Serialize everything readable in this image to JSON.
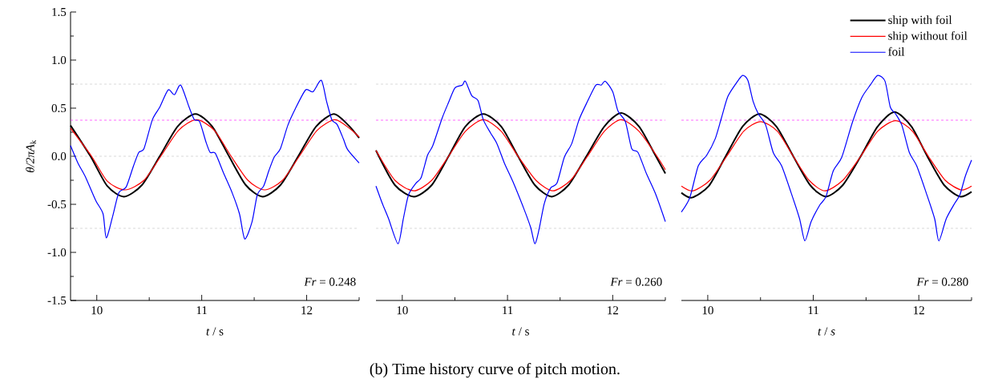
{
  "chart_data": [
    {
      "type": "line",
      "xlabel": "*t* / s",
      "ylabel": "*θ/2πA*$_{k}$",
      "xlim": [
        9.75,
        12.5
      ],
      "ylim": [
        -1.5,
        1.5
      ],
      "xticks": [
        10,
        {
          "value": 10.5,
          "label": null
        },
        11,
        {
          "value": 11.5,
          "label": null
        },
        12,
        {
          "value": 12.5,
          "label": null
        }
      ],
      "yticks": [
        -1.5,
        {
          "value": -1.25,
          "label": null
        },
        {
          "value": -1,
          "label": "-1.0"
        },
        {
          "value": -0.75,
          "label": null
        },
        -0.5,
        {
          "value": -0.25,
          "label": null
        },
        {
          "value": 0,
          "label": "0.0"
        },
        {
          "value": 0.25,
          "label": null
        },
        0.5,
        {
          "value": 0.75,
          "label": null
        },
        {
          "value": 1,
          "label": "1.0"
        },
        {
          "value": 1.25,
          "label": null
        },
        1.5
      ],
      "ref_lines": [
        {
          "axis": "y",
          "value": 0.75,
          "color": "#c0c0c0",
          "line_style": "dashed"
        },
        {
          "axis": "y",
          "value": 0,
          "color": "#c0c0c0",
          "line_style": "dashed"
        },
        {
          "axis": "y",
          "value": -0.75,
          "color": "#c0c0c0",
          "line_style": "dashed"
        },
        {
          "axis": "y",
          "value": 0.375,
          "color": "#ff00ff",
          "line_style": "dashed"
        }
      ],
      "marker": "none",
      "line_style": "solid",
      "annotations": [
        "*Fr* = 0.248"
      ],
      "series": [
        {
          "color": "#000000",
          "x": [
            9.75,
            9.94,
            10.1,
            10.26,
            10.43,
            10.6,
            10.77,
            10.94,
            11.1,
            11.26,
            11.42,
            11.58,
            11.75,
            11.92,
            12.09,
            12.26,
            12.4,
            12.5
          ],
          "values": [
            0.32,
            0.0,
            -0.31,
            -0.42,
            -0.3,
            0.0,
            0.31,
            0.44,
            0.31,
            0.0,
            -0.3,
            -0.42,
            -0.3,
            0.0,
            0.31,
            0.44,
            0.32,
            0.19
          ]
        },
        {
          "color": "#ff0000",
          "x": [
            9.75,
            9.95,
            10.1,
            10.27,
            10.45,
            10.61,
            10.78,
            10.95,
            11.12,
            11.28,
            11.44,
            11.6,
            11.77,
            11.93,
            12.1,
            12.27,
            12.42,
            12.5
          ],
          "values": [
            0.29,
            0.0,
            -0.26,
            -0.35,
            -0.25,
            0.0,
            0.27,
            0.38,
            0.27,
            0.0,
            -0.25,
            -0.35,
            -0.25,
            0.0,
            0.27,
            0.38,
            0.28,
            0.2
          ]
        },
        {
          "color": "#0000ff",
          "x": [
            9.75,
            9.82,
            9.89,
            9.99,
            10.06,
            10.09,
            10.15,
            10.21,
            10.28,
            10.35,
            10.4,
            10.45,
            10.53,
            10.6,
            10.68,
            10.74,
            10.8,
            10.88,
            10.93,
            10.98,
            11.04,
            11.08,
            11.13,
            11.21,
            11.29,
            11.36,
            11.41,
            11.48,
            11.53,
            11.59,
            11.64,
            11.69,
            11.75,
            11.82,
            11.89,
            11.99,
            12.06,
            12.14,
            12.19,
            12.24,
            12.29,
            12.35,
            12.39,
            12.5
          ],
          "values": [
            0.11,
            -0.07,
            -0.21,
            -0.46,
            -0.6,
            -0.85,
            -0.63,
            -0.38,
            -0.32,
            -0.1,
            0.04,
            0.08,
            0.38,
            0.51,
            0.69,
            0.64,
            0.74,
            0.51,
            0.38,
            0.36,
            0.15,
            0.04,
            0.03,
            -0.18,
            -0.38,
            -0.6,
            -0.86,
            -0.68,
            -0.4,
            -0.31,
            -0.15,
            -0.01,
            0.08,
            0.32,
            0.49,
            0.69,
            0.67,
            0.79,
            0.57,
            0.38,
            0.33,
            0.18,
            0.07,
            -0.07
          ]
        }
      ]
    },
    {
      "type": "line",
      "xlabel": "*t* / s",
      "tick_labels": "x",
      "xlim": [
        9.75,
        12.5
      ],
      "ylim": [
        -1.5,
        1.5
      ],
      "xticks": [
        10,
        {
          "value": 10.5,
          "label": null
        },
        11,
        {
          "value": 11.5,
          "label": null
        },
        12,
        {
          "value": 12.5,
          "label": null
        }
      ],
      "ref_lines": [
        {
          "axis": "y",
          "value": 0.75,
          "color": "#c0c0c0",
          "line_style": "dashed"
        },
        {
          "axis": "y",
          "value": 0,
          "color": "#c0c0c0",
          "line_style": "dashed"
        },
        {
          "axis": "y",
          "value": -0.75,
          "color": "#c0c0c0",
          "line_style": "dashed"
        },
        {
          "axis": "y",
          "value": 0.375,
          "color": "#ff00ff",
          "line_style": "dashed"
        }
      ],
      "marker": "none",
      "line_style": "solid",
      "annotations": [
        "*Fr* = 0.260",
        "(b) Time history curve of pitch motion."
      ],
      "series": [
        {
          "color": "#000000",
          "x": [
            9.75,
            9.93,
            10.11,
            10.28,
            10.44,
            10.6,
            10.77,
            10.94,
            11.1,
            11.26,
            11.42,
            11.58,
            11.75,
            11.92,
            12.08,
            12.25,
            12.41,
            12.5
          ],
          "values": [
            0.06,
            -0.3,
            -0.42,
            -0.3,
            0.0,
            0.31,
            0.44,
            0.31,
            0.0,
            -0.3,
            -0.42,
            -0.3,
            0.0,
            0.31,
            0.45,
            0.31,
            0.0,
            -0.18
          ]
        },
        {
          "color": "#ff0000",
          "x": [
            9.75,
            9.93,
            10.11,
            10.28,
            10.44,
            10.6,
            10.77,
            10.94,
            11.1,
            11.27,
            11.43,
            11.6,
            11.76,
            11.92,
            12.08,
            12.25,
            12.42,
            12.5
          ],
          "values": [
            0.06,
            -0.25,
            -0.36,
            -0.25,
            0.0,
            0.26,
            0.38,
            0.26,
            0.0,
            -0.25,
            -0.36,
            -0.25,
            0.0,
            0.26,
            0.38,
            0.26,
            0.0,
            -0.14
          ]
        },
        {
          "color": "#0000ff",
          "x": [
            9.75,
            9.81,
            9.87,
            9.96,
            10.01,
            10.06,
            10.13,
            10.18,
            10.24,
            10.29,
            10.38,
            10.44,
            10.5,
            10.57,
            10.6,
            10.66,
            10.72,
            10.77,
            10.84,
            10.9,
            10.97,
            11.05,
            11.15,
            11.22,
            11.26,
            11.3,
            11.35,
            11.41,
            11.47,
            11.54,
            11.61,
            11.68,
            11.76,
            11.84,
            11.89,
            11.93,
            12.0,
            12.05,
            12.12,
            12.18,
            12.24,
            12.32,
            12.41,
            12.5
          ],
          "values": [
            -0.31,
            -0.49,
            -0.65,
            -0.91,
            -0.65,
            -0.4,
            -0.28,
            -0.22,
            0.01,
            0.11,
            0.4,
            0.56,
            0.71,
            0.74,
            0.78,
            0.63,
            0.58,
            0.38,
            0.24,
            0.13,
            -0.07,
            -0.26,
            -0.53,
            -0.74,
            -0.91,
            -0.76,
            -0.49,
            -0.33,
            -0.28,
            -0.01,
            0.13,
            0.38,
            0.57,
            0.74,
            0.74,
            0.78,
            0.67,
            0.47,
            0.36,
            0.08,
            0.04,
            -0.18,
            -0.4,
            -0.68
          ]
        }
      ]
    },
    {
      "type": "line",
      "xlabel": "*t* / *s*",
      "tick_labels": "x",
      "xlim": [
        9.75,
        12.5
      ],
      "ylim": [
        -1.5,
        1.5
      ],
      "xticks": [
        10,
        {
          "value": 10.5,
          "label": null
        },
        11,
        {
          "value": 11.5,
          "label": null
        },
        12,
        {
          "value": 12.5,
          "label": null
        }
      ],
      "ref_lines": [
        {
          "axis": "y",
          "value": 0.75,
          "color": "#c0c0c0",
          "line_style": "dashed"
        },
        {
          "axis": "y",
          "value": 0,
          "color": "#c0c0c0",
          "line_style": "dashed"
        },
        {
          "axis": "y",
          "value": -0.75,
          "color": "#c0c0c0",
          "line_style": "dashed"
        },
        {
          "axis": "y",
          "value": 0.375,
          "color": "#ff00ff",
          "line_style": "dashed"
        }
      ],
      "marker": "none",
      "line_style": "solid",
      "legend": "top right",
      "annotations": [
        "*Fr* = 0.280"
      ],
      "series": [
        {
          "name": "ship with foil",
          "color": "#000000",
          "x": [
            9.75,
            9.85,
            10.01,
            10.17,
            10.33,
            10.49,
            10.65,
            10.81,
            10.97,
            11.12,
            11.28,
            11.45,
            11.61,
            11.77,
            11.93,
            12.08,
            12.24,
            12.39,
            12.5
          ],
          "values": [
            -0.38,
            -0.43,
            -0.31,
            0.0,
            0.31,
            0.44,
            0.31,
            0.0,
            -0.3,
            -0.42,
            -0.3,
            0.0,
            0.31,
            0.46,
            0.31,
            0.0,
            -0.3,
            -0.42,
            -0.37
          ]
        },
        {
          "name": "ship without foil",
          "color": "#ff0000",
          "x": [
            9.75,
            9.86,
            10.02,
            10.18,
            10.34,
            10.5,
            10.66,
            10.81,
            10.96,
            11.11,
            11.28,
            11.45,
            11.61,
            11.78,
            11.94,
            12.09,
            12.25,
            12.4,
            12.5
          ],
          "values": [
            -0.31,
            -0.36,
            -0.25,
            0.0,
            0.26,
            0.36,
            0.26,
            0.0,
            -0.25,
            -0.36,
            -0.25,
            0.0,
            0.26,
            0.37,
            0.26,
            0.0,
            -0.25,
            -0.35,
            -0.31
          ]
        },
        {
          "name": "foil",
          "color": "#0000ff",
          "x": [
            9.75,
            9.83,
            9.91,
            9.99,
            10.07,
            10.13,
            10.19,
            10.27,
            10.33,
            10.38,
            10.43,
            10.48,
            10.55,
            10.62,
            10.7,
            10.79,
            10.87,
            10.92,
            10.98,
            11.06,
            11.12,
            11.19,
            11.27,
            11.37,
            11.46,
            11.54,
            11.61,
            11.68,
            11.73,
            11.78,
            11.84,
            11.91,
            11.98,
            12.07,
            12.15,
            12.19,
            12.26,
            12.34,
            12.39,
            12.44,
            12.5
          ],
          "values": [
            -0.58,
            -0.43,
            -0.1,
            0.01,
            0.18,
            0.4,
            0.62,
            0.76,
            0.84,
            0.79,
            0.57,
            0.44,
            0.32,
            0.04,
            -0.1,
            -0.38,
            -0.65,
            -0.88,
            -0.68,
            -0.51,
            -0.42,
            -0.15,
            -0.01,
            0.35,
            0.61,
            0.74,
            0.84,
            0.78,
            0.51,
            0.44,
            0.32,
            0.04,
            -0.1,
            -0.38,
            -0.65,
            -0.88,
            -0.65,
            -0.49,
            -0.4,
            -0.21,
            -0.04
          ]
        }
      ]
    }
  ]
}
